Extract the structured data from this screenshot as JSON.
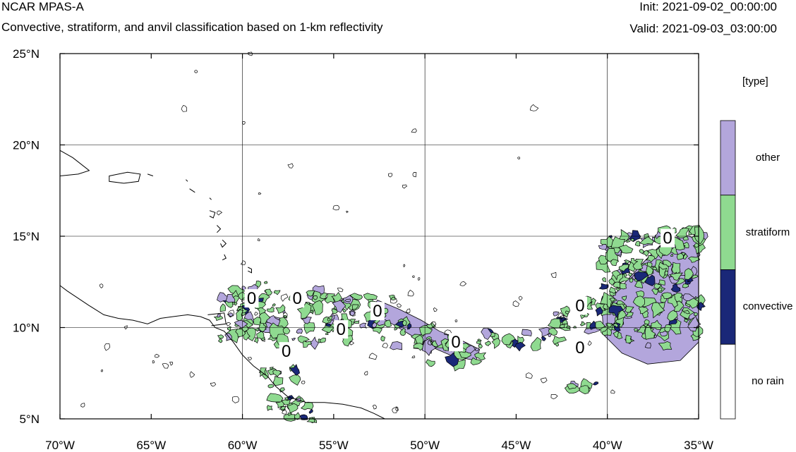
{
  "header": {
    "title": "NCAR MPAS-A",
    "subtitle": "Convective, stratiform, and anvil classification based on 1-km reflectivity",
    "init": "Init: 2021-09-02_00:00:00",
    "valid": "Valid: 2021-09-03_03:00:00"
  },
  "map": {
    "lon_range": [
      -70,
      -35
    ],
    "lat_range": [
      5,
      25
    ],
    "x_ticks": [
      {
        "lon": -70,
        "label": "70°W"
      },
      {
        "lon": -65,
        "label": "65°W"
      },
      {
        "lon": -60,
        "label": "60°W"
      },
      {
        "lon": -55,
        "label": "55°W"
      },
      {
        "lon": -50,
        "label": "50°W"
      },
      {
        "lon": -45,
        "label": "45°W"
      },
      {
        "lon": -40,
        "label": "40°W"
      },
      {
        "lon": -35,
        "label": "35°W"
      }
    ],
    "y_ticks": [
      {
        "lat": 25,
        "label": "25°N"
      },
      {
        "lat": 20,
        "label": "20°N"
      },
      {
        "lat": 15,
        "label": "15°N"
      },
      {
        "lat": 10,
        "label": "10°N"
      },
      {
        "lat": 5,
        "label": "5°N"
      }
    ],
    "gridlines_lon": [
      -60,
      -50,
      -40
    ],
    "gridlines_lat": [
      20,
      15,
      10
    ],
    "contour_labels": [
      {
        "lon": -59.5,
        "lat": 11.6,
        "text": "0"
      },
      {
        "lon": -57.0,
        "lat": 11.6,
        "text": "0"
      },
      {
        "lon": -57.6,
        "lat": 8.7,
        "text": "0"
      },
      {
        "lon": -54.6,
        "lat": 9.9,
        "text": "0"
      },
      {
        "lon": -52.6,
        "lat": 10.9,
        "text": "0"
      },
      {
        "lon": -48.3,
        "lat": 9.2,
        "text": "0"
      },
      {
        "lon": -41.5,
        "lat": 8.9,
        "text": "0"
      },
      {
        "lon": -41.5,
        "lat": 11.2,
        "text": "0"
      },
      {
        "lon": -36.7,
        "lat": 14.9,
        "text": "0"
      }
    ]
  },
  "legend": {
    "title": "[type]",
    "items": [
      {
        "label": "other",
        "color": "#b3a6dc"
      },
      {
        "label": "stratiform",
        "color": "#8fda90"
      },
      {
        "label": "convective",
        "color": "#1a2878"
      },
      {
        "label": "no rain",
        "color": "#ffffff"
      }
    ]
  },
  "colors": {
    "coastline": "#000000",
    "grid": "#000000"
  }
}
